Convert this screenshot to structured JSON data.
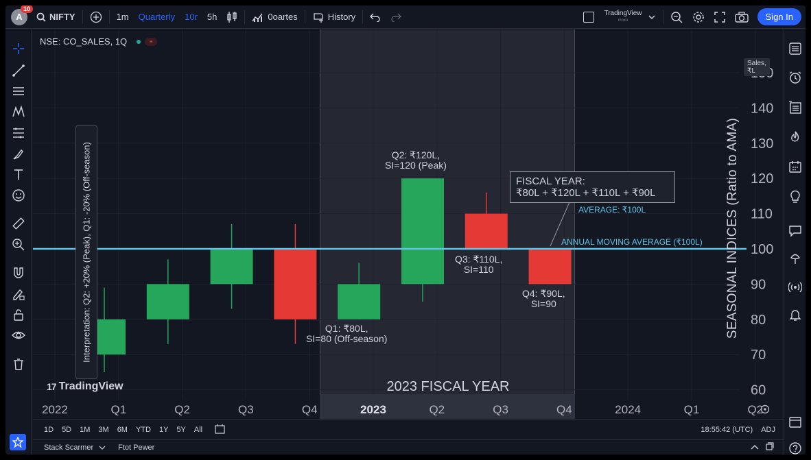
{
  "topbar": {
    "avatar_letter": "A",
    "notif_badge": "10",
    "symbol": "NIFTY",
    "intervals": [
      "1m",
      "Quarterly",
      "10r",
      "5h"
    ],
    "indicators_label": "0oartes",
    "history_label": "History",
    "brand_name": "TradingView",
    "brand_sub": "moxo",
    "signin_label": "Sign In"
  },
  "chart": {
    "symbol_label": "NSE: CO_SALES, 1Q",
    "status_badge": "≡",
    "units_label": "Sales, ₹L",
    "interpretation": "Interpretation: Q2: +20% (Peak), Q1: -20% (Off-season)",
    "y_axis_label": "SEASONAL INDICES (Ratio to AMA)",
    "fiscal_year_label": "2023 FISCAL YEAR",
    "watermark_logo": "17",
    "watermark": "TradingView",
    "annotations": {
      "q1": [
        "Q1: ₹80L,",
        "SI=80 (Off-season)"
      ],
      "q2": [
        "Q2: ₹120L,",
        "SI=120 (Peak)"
      ],
      "q3": [
        "Q3: ₹110L,",
        "SI=110"
      ],
      "q4": [
        "Q4: ₹90L,",
        "SI=90"
      ],
      "fy_box": [
        "FISCAL YEAR:",
        "₹80L + ₹120L + ₹110L + ₹90L"
      ],
      "average": "AVERAGE: ₹100L",
      "ama": "ANNUAL MOVING AVERAGE (₹100L)"
    }
  },
  "chart_data": {
    "type": "candlestick",
    "y_ticks": [
      150,
      140,
      130,
      120,
      110,
      100,
      90,
      80,
      70,
      60
    ],
    "ylim": [
      60,
      150
    ],
    "x_ticks": [
      "2022",
      "Q1",
      "Q2",
      "Q3",
      "Q4",
      "2023",
      "Q2",
      "Q3",
      "Q4",
      "2024",
      "Q1",
      "Q2"
    ],
    "bold_x_ticks": [
      "2023"
    ],
    "reference_line": {
      "label": "ANNUAL MOVING AVERAGE (₹100L)",
      "value": 100
    },
    "candles": [
      {
        "period": "2022 Q1",
        "open": 70,
        "close": 80,
        "high": 89,
        "low": 65,
        "color": "#26a65b"
      },
      {
        "period": "2022 Q2",
        "open": 80,
        "close": 90,
        "high": 97,
        "low": 73,
        "color": "#26a65b"
      },
      {
        "period": "2022 Q3",
        "open": 90,
        "close": 100,
        "high": 107,
        "low": 83,
        "color": "#26a65b"
      },
      {
        "period": "2022 Q4",
        "open": 100,
        "close": 80,
        "high": 107,
        "low": 73,
        "color": "#e53935"
      },
      {
        "period": "2023 Q1",
        "open": 80,
        "close": 90,
        "high": 96,
        "low": 80,
        "color": "#26a65b"
      },
      {
        "period": "2023 Q2",
        "open": 90,
        "close": 120,
        "high": 120,
        "low": 85,
        "color": "#26a65b"
      },
      {
        "period": "2023 Q3",
        "open": 110,
        "close": 100,
        "high": 116,
        "low": 100,
        "color": "#e53935"
      },
      {
        "period": "2023 Q4",
        "open": 100,
        "close": 90,
        "high": 100,
        "low": 90,
        "color": "#e53935"
      }
    ],
    "ama_color": "#5fc4e8"
  },
  "bottombar": {
    "ranges": [
      "1D",
      "5D",
      "1M",
      "3M",
      "6M",
      "YTD",
      "1Y",
      "5Y",
      "All"
    ],
    "time": "18:55:42 (UTC)",
    "adj": "ADJ"
  },
  "statusbar": {
    "left_item": "Stack Scarmer",
    "second_item": "Ftot Pewer"
  }
}
